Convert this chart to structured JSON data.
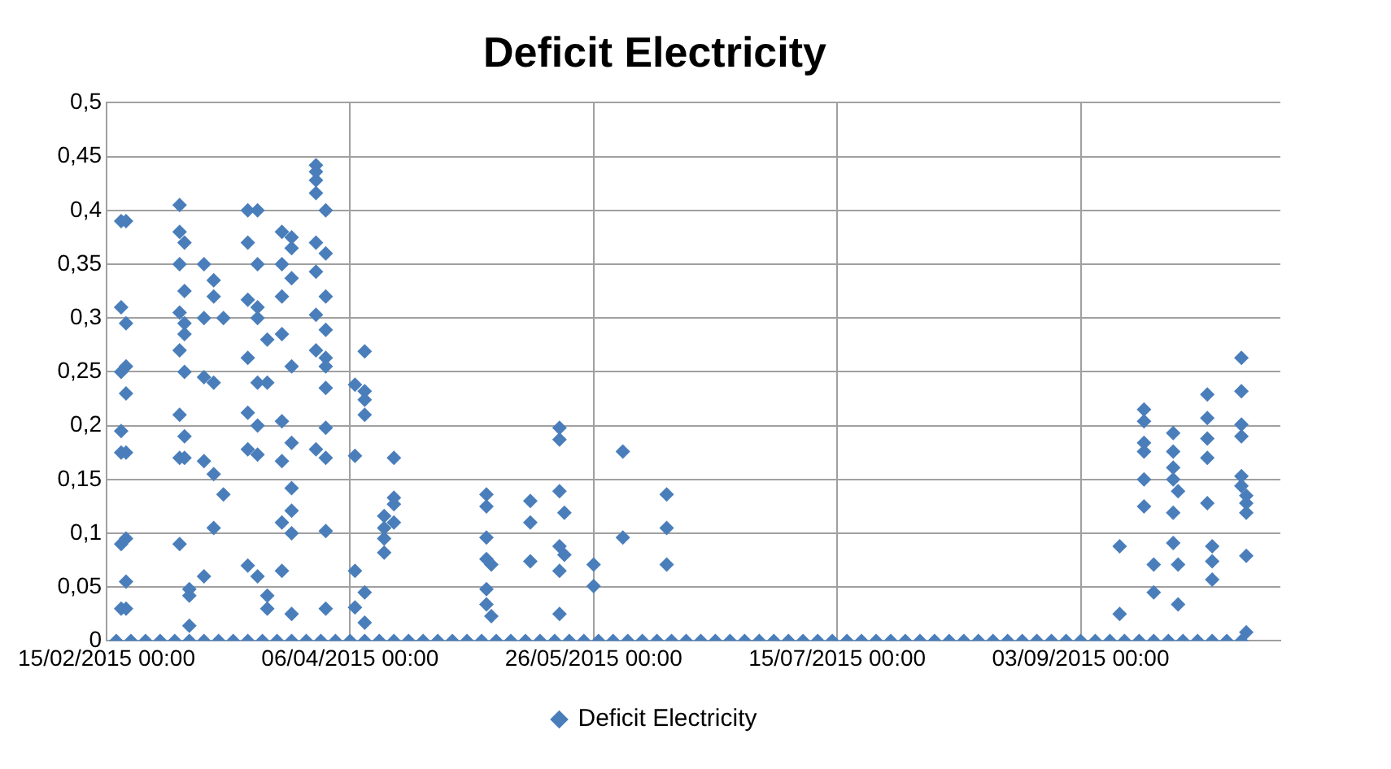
{
  "chart_data": {
    "type": "scatter",
    "title": "Deficit Electricity",
    "marker": "diamond",
    "grid": true,
    "legend": "bottom",
    "xlim": [
      "2015-02-15",
      "2015-10-14"
    ],
    "xticks": [
      {
        "value": "2015-02-15",
        "label": "15/02/2015 00:00"
      },
      {
        "value": "2015-04-06",
        "label": "06/04/2015 00:00"
      },
      {
        "value": "2015-05-26",
        "label": "26/05/2015 00:00"
      },
      {
        "value": "2015-07-15",
        "label": "15/07/2015 00:00"
      },
      {
        "value": "2015-09-03",
        "label": "03/09/2015 00:00"
      }
    ],
    "ylim": [
      0,
      0.5
    ],
    "yticks": [
      0,
      {
        "value": 0.05,
        "label": "0,05"
      },
      {
        "value": 0.1,
        "label": "0,1"
      },
      {
        "value": 0.15,
        "label": "0,15"
      },
      {
        "value": 0.2,
        "label": "0,2"
      },
      {
        "value": 0.25,
        "label": "0,25"
      },
      {
        "value": 0.3,
        "label": "0,3"
      },
      {
        "value": 0.35,
        "label": "0,35"
      },
      {
        "value": 0.4,
        "label": "0,4"
      },
      {
        "value": 0.45,
        "label": "0,45"
      },
      {
        "value": 0.5,
        "label": "0,5"
      }
    ],
    "series": [
      {
        "name": "Deficit Electricity",
        "color": "#4a7ebb",
        "x": [
          "2015-02-18",
          "2015-02-18",
          "2015-02-18",
          "2015-02-18",
          "2015-02-18",
          "2015-02-18",
          "2015-02-18",
          "2015-02-19",
          "2015-02-19",
          "2015-02-19",
          "2015-02-19",
          "2015-02-19",
          "2015-02-19",
          "2015-02-19",
          "2015-02-19",
          "2015-03-02",
          "2015-03-02",
          "2015-03-02",
          "2015-03-02",
          "2015-03-02",
          "2015-03-02",
          "2015-03-02",
          "2015-03-02",
          "2015-03-03",
          "2015-03-03",
          "2015-03-03",
          "2015-03-03",
          "2015-03-03",
          "2015-03-03",
          "2015-03-03",
          "2015-03-04",
          "2015-03-04",
          "2015-03-04",
          "2015-03-07",
          "2015-03-07",
          "2015-03-07",
          "2015-03-07",
          "2015-03-07",
          "2015-03-09",
          "2015-03-09",
          "2015-03-09",
          "2015-03-09",
          "2015-03-09",
          "2015-03-11",
          "2015-03-11",
          "2015-03-16",
          "2015-03-16",
          "2015-03-16",
          "2015-03-16",
          "2015-03-16",
          "2015-03-16",
          "2015-03-16",
          "2015-03-18",
          "2015-03-18",
          "2015-03-18",
          "2015-03-18",
          "2015-03-18",
          "2015-03-18",
          "2015-03-18",
          "2015-03-18",
          "2015-03-20",
          "2015-03-20",
          "2015-03-20",
          "2015-03-20",
          "2015-03-23",
          "2015-03-23",
          "2015-03-23",
          "2015-03-23",
          "2015-03-23",
          "2015-03-23",
          "2015-03-23",
          "2015-03-23",
          "2015-03-25",
          "2015-03-25",
          "2015-03-25",
          "2015-03-25",
          "2015-03-25",
          "2015-03-25",
          "2015-03-25",
          "2015-03-25",
          "2015-03-25",
          "2015-03-30",
          "2015-03-30",
          "2015-03-30",
          "2015-03-30",
          "2015-03-30",
          "2015-03-30",
          "2015-03-30",
          "2015-03-30",
          "2015-03-30",
          "2015-04-01",
          "2015-04-01",
          "2015-04-01",
          "2015-04-01",
          "2015-04-01",
          "2015-04-01",
          "2015-04-01",
          "2015-04-01",
          "2015-04-01",
          "2015-04-01",
          "2015-04-01",
          "2015-04-07",
          "2015-04-07",
          "2015-04-07",
          "2015-04-07",
          "2015-04-09",
          "2015-04-09",
          "2015-04-09",
          "2015-04-09",
          "2015-04-09",
          "2015-04-09",
          "2015-04-13",
          "2015-04-13",
          "2015-04-13",
          "2015-04-13",
          "2015-04-15",
          "2015-04-15",
          "2015-04-15",
          "2015-04-15",
          "2015-05-04",
          "2015-05-04",
          "2015-05-04",
          "2015-05-04",
          "2015-05-04",
          "2015-05-04",
          "2015-05-05",
          "2015-05-05",
          "2015-05-13",
          "2015-05-13",
          "2015-05-13",
          "2015-05-19",
          "2015-05-19",
          "2015-05-19",
          "2015-05-19",
          "2015-05-19",
          "2015-05-19",
          "2015-05-20",
          "2015-05-20",
          "2015-05-26",
          "2015-05-26",
          "2015-06-01",
          "2015-06-01",
          "2015-06-10",
          "2015-06-10",
          "2015-06-10",
          "2015-09-11",
          "2015-09-11",
          "2015-09-16",
          "2015-09-16",
          "2015-09-16",
          "2015-09-16",
          "2015-09-16",
          "2015-09-16",
          "2015-09-18",
          "2015-09-18",
          "2015-09-22",
          "2015-09-22",
          "2015-09-22",
          "2015-09-22",
          "2015-09-22",
          "2015-09-22",
          "2015-09-23",
          "2015-09-23",
          "2015-09-23",
          "2015-09-29",
          "2015-09-29",
          "2015-09-29",
          "2015-09-29",
          "2015-09-29",
          "2015-09-30",
          "2015-09-30",
          "2015-09-30",
          "2015-10-06",
          "2015-10-06",
          "2015-10-06",
          "2015-10-06",
          "2015-10-06",
          "2015-10-06",
          "2015-10-07",
          "2015-10-07",
          "2015-10-07",
          "2015-10-07",
          "2015-10-07",
          "2015-02-17",
          "2015-02-20",
          "2015-02-23",
          "2015-02-26",
          "2015-03-01",
          "2015-03-04",
          "2015-03-07",
          "2015-03-10",
          "2015-03-13",
          "2015-03-16",
          "2015-03-19",
          "2015-03-22",
          "2015-03-25",
          "2015-03-28",
          "2015-03-31",
          "2015-04-03",
          "2015-04-06",
          "2015-04-09",
          "2015-04-12",
          "2015-04-15",
          "2015-04-18",
          "2015-04-21",
          "2015-04-24",
          "2015-04-27",
          "2015-04-30",
          "2015-05-03",
          "2015-05-06",
          "2015-05-09",
          "2015-05-12",
          "2015-05-15",
          "2015-05-18",
          "2015-05-21",
          "2015-05-24",
          "2015-05-27",
          "2015-05-30",
          "2015-06-02",
          "2015-06-05",
          "2015-06-08",
          "2015-06-11",
          "2015-06-14",
          "2015-06-17",
          "2015-06-20",
          "2015-06-23",
          "2015-06-26",
          "2015-06-29",
          "2015-07-02",
          "2015-07-05",
          "2015-07-08",
          "2015-07-11",
          "2015-07-14",
          "2015-07-17",
          "2015-07-20",
          "2015-07-23",
          "2015-07-26",
          "2015-07-29",
          "2015-08-01",
          "2015-08-04",
          "2015-08-07",
          "2015-08-10",
          "2015-08-13",
          "2015-08-16",
          "2015-08-19",
          "2015-08-22",
          "2015-08-25",
          "2015-08-28",
          "2015-08-31",
          "2015-09-03",
          "2015-09-06",
          "2015-09-09",
          "2015-09-12",
          "2015-09-15",
          "2015-09-18",
          "2015-09-21",
          "2015-09-24",
          "2015-09-27",
          "2015-09-30",
          "2015-10-03",
          "2015-10-06"
        ],
        "values": [
          0.39,
          0.31,
          0.25,
          0.195,
          0.175,
          0.09,
          0.03,
          0.39,
          0.295,
          0.255,
          0.23,
          0.175,
          0.095,
          0.055,
          0.03,
          0.405,
          0.38,
          0.35,
          0.305,
          0.27,
          0.21,
          0.17,
          0.09,
          0.37,
          0.325,
          0.295,
          0.285,
          0.25,
          0.19,
          0.17,
          0.048,
          0.042,
          0.014,
          0.35,
          0.3,
          0.245,
          0.167,
          0.06,
          0.335,
          0.32,
          0.24,
          0.155,
          0.105,
          0.3,
          0.136,
          0.4,
          0.37,
          0.317,
          0.263,
          0.212,
          0.178,
          0.07,
          0.4,
          0.35,
          0.31,
          0.3,
          0.24,
          0.2,
          0.173,
          0.06,
          0.28,
          0.24,
          0.042,
          0.03,
          0.38,
          0.35,
          0.32,
          0.285,
          0.204,
          0.167,
          0.11,
          0.065,
          0.375,
          0.365,
          0.337,
          0.255,
          0.184,
          0.142,
          0.121,
          0.1,
          0.025,
          0.442,
          0.436,
          0.428,
          0.416,
          0.37,
          0.343,
          0.303,
          0.27,
          0.178,
          0.4,
          0.36,
          0.32,
          0.289,
          0.263,
          0.255,
          0.235,
          0.198,
          0.17,
          0.102,
          0.03,
          0.238,
          0.172,
          0.065,
          0.031,
          0.269,
          0.232,
          0.224,
          0.21,
          0.045,
          0.017,
          0.116,
          0.105,
          0.095,
          0.082,
          0.17,
          0.133,
          0.127,
          0.11,
          0.136,
          0.125,
          0.096,
          0.076,
          0.048,
          0.034,
          0.071,
          0.023,
          0.13,
          0.11,
          0.074,
          0.198,
          0.187,
          0.139,
          0.088,
          0.065,
          0.025,
          0.119,
          0.08,
          0.071,
          0.051,
          0.176,
          0.096,
          0.136,
          0.105,
          0.071,
          0.088,
          0.025,
          0.215,
          0.204,
          0.184,
          0.176,
          0.15,
          0.125,
          0.071,
          0.045,
          0.193,
          0.176,
          0.161,
          0.15,
          0.119,
          0.091,
          0.139,
          0.071,
          0.034,
          0.229,
          0.207,
          0.188,
          0.17,
          0.128,
          0.088,
          0.074,
          0.057,
          0.263,
          0.232,
          0.201,
          0.19,
          0.153,
          0.144,
          0.135,
          0.128,
          0.119,
          0.079,
          0.008,
          0,
          0,
          0,
          0,
          0,
          0,
          0,
          0,
          0,
          0,
          0,
          0,
          0,
          0,
          0,
          0,
          0,
          0,
          0,
          0,
          0,
          0,
          0,
          0,
          0,
          0,
          0,
          0,
          0,
          0,
          0,
          0,
          0,
          0,
          0,
          0,
          0,
          0,
          0,
          0,
          0,
          0,
          0,
          0,
          0,
          0,
          0,
          0,
          0,
          0,
          0,
          0,
          0,
          0,
          0,
          0,
          0,
          0,
          0,
          0,
          0,
          0,
          0,
          0,
          0,
          0,
          0,
          0,
          0,
          0,
          0,
          0,
          0,
          0,
          0,
          0,
          0,
          0
        ]
      }
    ]
  }
}
